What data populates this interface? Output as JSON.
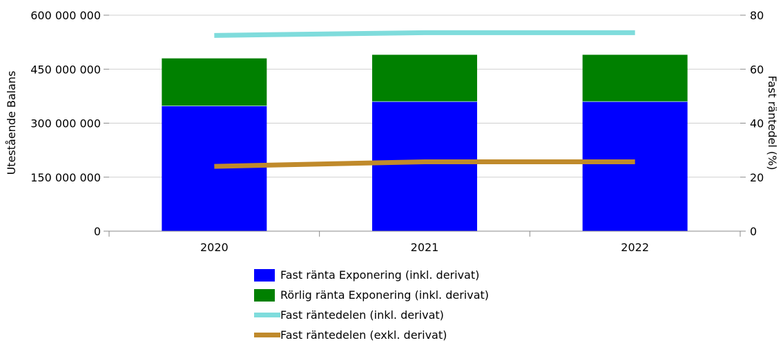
{
  "chart_data": {
    "type": "bar",
    "categories": [
      "2020",
      "2021",
      "2022"
    ],
    "series": [
      {
        "name": "Fast ränta Exponering (inkl. derivat)",
        "kind": "bar",
        "axis": "left",
        "color": "#0000ff",
        "values": [
          348000000,
          360000000,
          360000000
        ]
      },
      {
        "name": "Rörlig ränta Exponering (inkl. derivat)",
        "kind": "bar",
        "axis": "left",
        "color": "#008000",
        "values": [
          132000000,
          130000000,
          130000000
        ]
      },
      {
        "name": "Fast räntedelen (inkl. derivat)",
        "kind": "line",
        "axis": "right",
        "color": "#7fdcdc",
        "values": [
          72.5,
          73.5,
          73.5
        ]
      },
      {
        "name": "Fast räntedelen (exkl. derivat)",
        "kind": "line",
        "axis": "right",
        "color": "#c08a2b",
        "values": [
          24,
          25.7,
          25.7
        ]
      }
    ],
    "ylabel": "Utestående Balans",
    "y2label": "Fast räntedel (%)",
    "ylim": [
      0,
      600000000
    ],
    "y2lim": [
      0,
      80
    ],
    "yticks": [
      "0",
      "150 000 000",
      "300 000 000",
      "450 000 000",
      "600 000 000"
    ],
    "y2ticks": [
      "0",
      "20",
      "40",
      "60",
      "80"
    ],
    "stacked": true,
    "grid": true,
    "legend": "bottom"
  }
}
